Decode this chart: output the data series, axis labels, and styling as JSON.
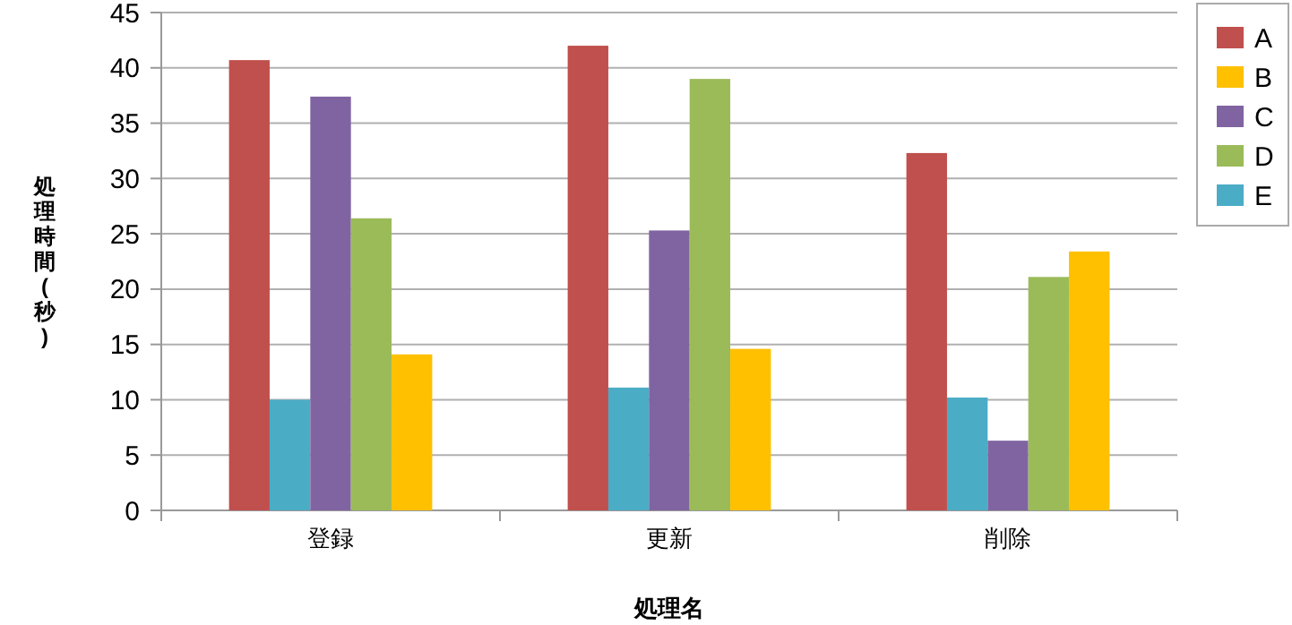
{
  "chart_data": {
    "type": "bar",
    "xlabel": "処理名",
    "ylabel": "処理時間(秒)",
    "categories": [
      "登録",
      "更新",
      "削除"
    ],
    "series": [
      {
        "name": "A",
        "color": "#c0504d",
        "values": [
          40.7,
          42,
          32.3
        ]
      },
      {
        "name": "E",
        "color": "#4bacc6",
        "values": [
          10,
          11.1,
          10.2
        ]
      },
      {
        "name": "C",
        "color": "#8064a2",
        "values": [
          37.4,
          25.3,
          6.3
        ]
      },
      {
        "name": "D",
        "color": "#9bbb59",
        "values": [
          26.4,
          39,
          21.1
        ]
      },
      {
        "name": "B",
        "color": "#ffc000",
        "values": [
          14.1,
          14.6,
          23.4
        ]
      }
    ],
    "ylim": [
      0,
      45
    ],
    "yticks": [
      0,
      5,
      10,
      15,
      20,
      25,
      30,
      35,
      40,
      45
    ],
    "grid": "y",
    "legend": "top right"
  }
}
